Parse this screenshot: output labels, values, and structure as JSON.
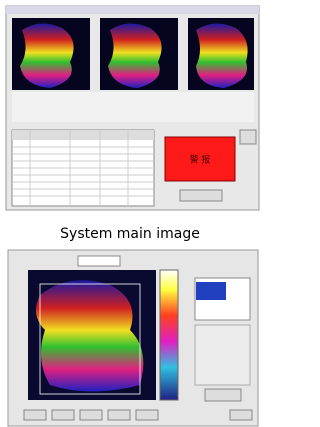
{
  "caption": "System main image",
  "alarm_panel": {
    "label": "警 报"
  }
}
